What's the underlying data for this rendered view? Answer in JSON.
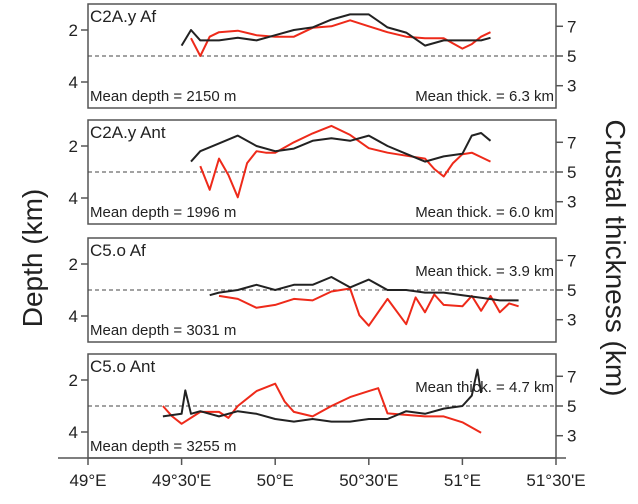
{
  "chart_data": {
    "type": "line",
    "ylabel_left": "Depth (km)",
    "ylabel_right": "Crustal thickness (km)",
    "x_ticks": [
      {
        "value": 49.0,
        "label": "49°E"
      },
      {
        "value": 49.5,
        "label": "49°30'E"
      },
      {
        "value": 50.0,
        "label": "50°E"
      },
      {
        "value": 50.5,
        "label": "50°30'E"
      },
      {
        "value": 51.0,
        "label": "51°E"
      },
      {
        "value": 51.5,
        "label": "51°30'E"
      }
    ],
    "xlim": [
      49.0,
      51.5
    ],
    "series_colors": {
      "depth": "#222222",
      "thickness": "#ee2a1a"
    },
    "panels": [
      {
        "title": "C2A.y Af",
        "depth_ticks": [
          2,
          4
        ],
        "thick_ticks": [
          7,
          5,
          3
        ],
        "dashed_depth": 3,
        "mean_depth_label": "Mean depth = 2150 m",
        "mean_thick_label": "Mean thick. = 6.3 km",
        "depth_x": [
          49.5,
          49.55,
          49.6,
          49.7,
          49.8,
          49.9,
          50.0,
          50.1,
          50.2,
          50.3,
          50.4,
          50.5,
          50.6,
          50.7,
          50.8,
          50.9,
          51.0,
          51.1,
          51.15
        ],
        "depth_y": [
          2.6,
          2.0,
          2.4,
          2.4,
          2.3,
          2.4,
          2.2,
          2.0,
          1.9,
          1.6,
          1.4,
          1.4,
          1.9,
          2.1,
          2.6,
          2.4,
          2.4,
          2.4,
          2.3
        ],
        "thick_x": [
          49.55,
          49.6,
          49.65,
          49.7,
          49.8,
          49.9,
          50.0,
          50.1,
          50.2,
          50.3,
          50.4,
          50.5,
          50.6,
          50.7,
          50.8,
          50.9,
          51.0,
          51.05,
          51.1,
          51.15
        ],
        "thick_y": [
          6.2,
          5.0,
          6.3,
          6.6,
          6.7,
          6.4,
          6.3,
          6.3,
          6.9,
          7.0,
          7.4,
          7.0,
          6.6,
          6.3,
          6.2,
          6.2,
          5.5,
          5.8,
          6.3,
          6.6
        ]
      },
      {
        "title": "C2A.y Ant",
        "depth_ticks": [
          2,
          4
        ],
        "thick_ticks": [
          7,
          5,
          3
        ],
        "dashed_depth": 3,
        "mean_depth_label": "Mean depth = 1996 m",
        "mean_thick_label": "Mean thick. = 6.0 km",
        "depth_x": [
          49.55,
          49.6,
          49.7,
          49.8,
          49.9,
          50.0,
          50.1,
          50.2,
          50.3,
          50.4,
          50.5,
          50.6,
          50.7,
          50.8,
          50.9,
          51.0,
          51.05,
          51.1,
          51.15
        ],
        "depth_y": [
          2.6,
          2.2,
          1.9,
          1.6,
          2.0,
          2.2,
          2.1,
          1.8,
          1.7,
          1.8,
          1.6,
          2.0,
          2.3,
          2.6,
          2.4,
          2.3,
          1.6,
          1.5,
          1.8
        ],
        "thick_x": [
          49.6,
          49.65,
          49.7,
          49.75,
          49.8,
          49.85,
          49.9,
          49.95,
          50.0,
          50.1,
          50.2,
          50.3,
          50.4,
          50.5,
          50.6,
          50.7,
          50.8,
          50.85,
          50.9,
          50.95,
          51.0,
          51.05,
          51.1,
          51.15
        ],
        "thick_y": [
          5.4,
          3.8,
          5.9,
          4.8,
          3.3,
          5.6,
          6.4,
          6.3,
          6.3,
          7.0,
          7.6,
          8.1,
          7.5,
          6.6,
          6.3,
          6.1,
          5.9,
          5.2,
          4.7,
          5.6,
          6.2,
          6.3,
          6.0,
          5.7
        ]
      },
      {
        "title": "C5.o Af",
        "depth_ticks": [
          2,
          4
        ],
        "thick_ticks": [
          7,
          5,
          3
        ],
        "dashed_depth": 3,
        "mean_depth_label": "Mean depth = 3031 m",
        "mean_thick_label": "Mean thick. = 3.9 km",
        "depth_x": [
          49.65,
          49.7,
          49.8,
          49.9,
          50.0,
          50.1,
          50.2,
          50.3,
          50.4,
          50.5,
          50.6,
          50.7,
          50.8,
          50.9,
          51.0,
          51.1,
          51.2,
          51.3
        ],
        "depth_y": [
          3.2,
          3.1,
          3.0,
          2.8,
          3.0,
          2.8,
          2.8,
          2.5,
          2.9,
          2.6,
          3.0,
          3.0,
          3.1,
          3.1,
          3.2,
          3.3,
          3.4,
          3.4
        ],
        "thick_x": [
          49.7,
          49.8,
          49.9,
          50.0,
          50.1,
          50.2,
          50.3,
          50.4,
          50.45,
          50.5,
          50.6,
          50.7,
          50.75,
          50.8,
          50.85,
          50.9,
          51.0,
          51.05,
          51.1,
          51.15,
          51.2,
          51.25,
          51.3
        ],
        "thick_y": [
          4.6,
          4.4,
          3.8,
          4.0,
          4.4,
          4.3,
          4.9,
          5.1,
          3.3,
          2.6,
          4.4,
          2.7,
          4.5,
          3.5,
          4.7,
          4.0,
          3.9,
          4.6,
          3.6,
          4.6,
          3.5,
          4.1,
          3.9
        ]
      },
      {
        "title": "C5.o Ant",
        "depth_ticks": [
          2,
          4
        ],
        "thick_ticks": [
          7,
          5,
          3
        ],
        "dashed_depth": 3,
        "mean_depth_label": "Mean depth = 3255 m",
        "mean_thick_label": "Mean thick. = 4.7 km",
        "depth_x": [
          49.4,
          49.5,
          49.52,
          49.55,
          49.6,
          49.7,
          49.8,
          49.9,
          50.0,
          50.1,
          50.2,
          50.3,
          50.4,
          50.5,
          50.6,
          50.7,
          50.8,
          50.9,
          51.0,
          51.05,
          51.08,
          51.1
        ],
        "depth_y": [
          3.4,
          3.3,
          2.4,
          3.3,
          3.2,
          3.4,
          3.2,
          3.3,
          3.5,
          3.6,
          3.5,
          3.6,
          3.6,
          3.5,
          3.5,
          3.2,
          3.3,
          3.1,
          3.0,
          2.6,
          1.6,
          2.5
        ],
        "thick_x": [
          49.4,
          49.45,
          49.5,
          49.6,
          49.7,
          49.75,
          49.8,
          49.9,
          50.0,
          50.05,
          50.1,
          50.2,
          50.3,
          50.4,
          50.5,
          50.55,
          50.6,
          50.7,
          50.8,
          50.9,
          51.0,
          51.1
        ],
        "thick_y": [
          5.0,
          4.3,
          3.8,
          4.6,
          4.6,
          4.2,
          5.0,
          6.0,
          6.5,
          5.3,
          4.6,
          4.3,
          5.0,
          5.6,
          6.0,
          6.2,
          4.5,
          4.4,
          4.3,
          4.3,
          3.9,
          3.2
        ]
      }
    ]
  }
}
